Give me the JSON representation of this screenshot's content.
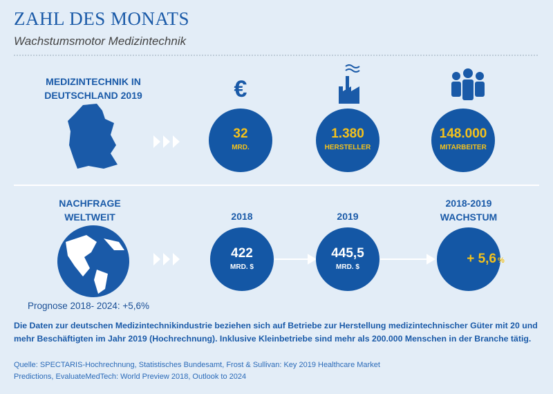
{
  "header": {
    "title": "ZAHL DES MONATS",
    "subtitle": "Wachstumsmotor Medizintechnik"
  },
  "section1": {
    "label": "MEDIZINTECHNIK IN\nDEUTSCHLAND 2019",
    "currency": "€",
    "stats": [
      {
        "value": "32",
        "unit": "MRD."
      },
      {
        "value": "1.380",
        "unit": "HERSTELLER"
      },
      {
        "value": "148.000",
        "unit": "MITARBEITER"
      }
    ]
  },
  "section2": {
    "label": "NACHFRAGE\nWELTWEIT",
    "forecast": "Prognose 2018- 2024: +5,6%",
    "stats": [
      {
        "heading": "2018",
        "value": "422",
        "unit": "MRD. $"
      },
      {
        "heading": "2019",
        "value": "445,5",
        "unit": "MRD. $"
      },
      {
        "heading": "2018-2019\nWACHSTUM",
        "value": "+ 5,6",
        "unit": "%"
      }
    ]
  },
  "footer": {
    "note": "Die Daten zur deutschen Medizintechnikindustrie beziehen sich auf Betriebe zur Herstellung medizintechnischer Güter mit 20 und mehr Beschäftigten im Jahr 2019 (Hochrechnung). Inklusive Kleinbetriebe sind mehr als 200.000 Menschen in der Branche tätig.",
    "source": "Quelle: SPECTARIS-Hochrechnung, Statistisches Bundesamt, Frost & Sullivan: Key 2019 Healthcare Market Predictions, EvaluateMedTech: World Preview 2018, Outlook to 2024"
  }
}
